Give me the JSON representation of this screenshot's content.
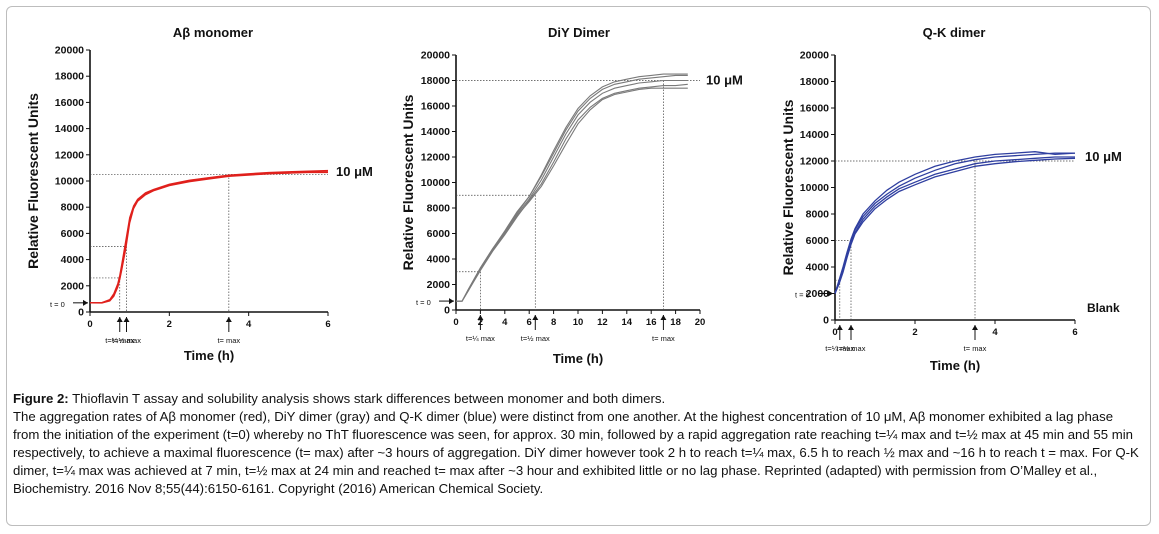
{
  "figure": {
    "caption_title": "Figure 2:",
    "caption_subtitle": "Thioflavin T assay and solubility analysis shows stark differences between monomer and both dimers.",
    "caption_body": "The aggregation rates of Aβ monomer (red), DiY dimer (gray) and Q-K dimer (blue) were distinct from one another. At the highest concentration of 10 μM, Aβ monomer exhibited a lag phase from the initiation of the experiment (t=0) whereby no ThT fluorescence was seen, for approx. 30 min, followed by a rapid aggregation rate reaching t=¼ max and t=½ max at 45 min and 55 min respectively, to achieve a maximal fluorescence (t= max) after ~3 hours of aggregation. DiY dimer however took 2 h to reach t=¼ max, 6.5 h to reach ½ max and ~16 h to reach t = max. For Q-K dimer, t=¼ max was achieved at 7 min, t=½ max at 24 min and reached t= max after ~3 hour and exhibited little or no lag phase. Reprinted (adapted) with permission from O’Malley et al., Biochemistry. 2016 Nov 8;55(44):6150-6161. Copyright (2016) American Chemical Society."
  },
  "chart_data": [
    {
      "type": "line",
      "title": "Aβ monomer",
      "xlabel": "Time (h)",
      "ylabel": "Relative Fluorescent Units",
      "xlim": [
        0,
        6
      ],
      "ylim": [
        0,
        20000
      ],
      "xticks": [
        "0",
        "2",
        "4",
        "6"
      ],
      "yticks": [
        "0",
        "2000",
        "4000",
        "6000",
        "8000",
        "10000",
        "12000",
        "14000",
        "16000",
        "18000",
        "20000"
      ],
      "color": "#e0201c",
      "concentration_label": "10 μM",
      "t0_label": "t = 0",
      "extra_label": "",
      "reference_lines": {
        "quarter": 2600,
        "half": 5000,
        "max": 10500
      },
      "markers": [
        {
          "x": 0.75,
          "label": "t=¼ max"
        },
        {
          "x": 0.92,
          "label": "t=½ max"
        },
        {
          "x": 3.5,
          "label": "t= max"
        }
      ],
      "series": [
        {
          "x": [
            0,
            0.3,
            0.5,
            0.6,
            0.7,
            0.75,
            0.8,
            0.85,
            0.9,
            0.95,
            1.0,
            1.1,
            1.2,
            1.4,
            1.6,
            1.8,
            2.0,
            2.5,
            3.0,
            3.5,
            4.0,
            4.5,
            5.0,
            5.5,
            6.0
          ],
          "y": [
            700,
            700,
            900,
            1300,
            2000,
            2600,
            3300,
            4200,
            5000,
            6000,
            7000,
            8000,
            8500,
            9000,
            9300,
            9500,
            9700,
            10000,
            10200,
            10400,
            10500,
            10600,
            10600,
            10700,
            10700
          ]
        },
        {
          "x": [
            0,
            0.3,
            0.5,
            0.6,
            0.7,
            0.75,
            0.8,
            0.85,
            0.9,
            0.95,
            1.0,
            1.1,
            1.2,
            1.4,
            1.6,
            1.8,
            2.0,
            2.5,
            3.0,
            3.5,
            4.0,
            4.5,
            5.0,
            5.5,
            6.0
          ],
          "y": [
            700,
            720,
            950,
            1400,
            2150,
            2800,
            3600,
            4500,
            5400,
            6300,
            7200,
            8100,
            8600,
            9100,
            9350,
            9550,
            9750,
            10050,
            10250,
            10450,
            10550,
            10650,
            10700,
            10750,
            10800
          ]
        },
        {
          "x": [
            0,
            0.3,
            0.5,
            0.6,
            0.7,
            0.75,
            0.8,
            0.85,
            0.9,
            0.95,
            1.0,
            1.1,
            1.2,
            1.4,
            1.6,
            1.8,
            2.0,
            2.5,
            3.0,
            3.5,
            4.0,
            4.5,
            5.0,
            5.5,
            6.0
          ],
          "y": [
            700,
            690,
            850,
            1200,
            1900,
            2500,
            3200,
            4000,
            4800,
            5800,
            6800,
            7900,
            8450,
            8950,
            9250,
            9450,
            9650,
            9950,
            10150,
            10350,
            10450,
            10550,
            10600,
            10650,
            10650
          ]
        }
      ]
    },
    {
      "type": "line",
      "title": "DiY Dimer",
      "xlabel": "Time (h)",
      "ylabel": "Relative Fluorescent Units",
      "xlim": [
        0,
        20
      ],
      "ylim": [
        0,
        20000
      ],
      "xticks": [
        "0",
        "2",
        "4",
        "6",
        "8",
        "10",
        "12",
        "14",
        "16",
        "18",
        "20"
      ],
      "yticks": [
        "0",
        "2000",
        "4000",
        "6000",
        "8000",
        "10000",
        "12000",
        "14000",
        "16000",
        "18000",
        "20000"
      ],
      "color": "#7a7a7a",
      "concentration_label": "10 μM",
      "t0_label": "t = 0",
      "extra_label": "",
      "reference_lines": {
        "quarter": 3000,
        "half": 9000,
        "max": 18000
      },
      "markers": [
        {
          "x": 2.0,
          "label": "t=¼ max"
        },
        {
          "x": 6.5,
          "label": "t=½ max"
        },
        {
          "x": 17.0,
          "label": "t= max"
        }
      ],
      "series": [
        {
          "x": [
            0,
            0.5,
            1,
            2,
            3,
            4,
            5,
            6,
            7,
            8,
            9,
            10,
            11,
            12,
            13,
            14,
            15,
            16,
            17,
            18,
            19
          ],
          "y": [
            700,
            700,
            1500,
            3200,
            4700,
            6000,
            7500,
            8700,
            10200,
            12000,
            13800,
            15300,
            16300,
            17000,
            17400,
            17600,
            17800,
            17900,
            18000,
            18000,
            18000
          ]
        },
        {
          "x": [
            0,
            0.5,
            1,
            2,
            3,
            4,
            5,
            6,
            7,
            8,
            9,
            10,
            11,
            12,
            13,
            14,
            15,
            16,
            17,
            18,
            19
          ],
          "y": [
            700,
            700,
            1600,
            3300,
            4800,
            6200,
            7700,
            8900,
            10500,
            12300,
            14100,
            15600,
            16600,
            17300,
            17700,
            17900,
            18100,
            18200,
            18300,
            18400,
            18400
          ]
        },
        {
          "x": [
            0,
            0.5,
            1,
            2,
            3,
            4,
            5,
            6,
            7,
            8,
            9,
            10,
            11,
            12,
            13,
            14,
            15,
            16,
            17,
            18,
            19
          ],
          "y": [
            700,
            700,
            1500,
            3100,
            4600,
            5900,
            7300,
            8600,
            9900,
            11600,
            13400,
            14900,
            15900,
            16600,
            17000,
            17200,
            17400,
            17500,
            17600,
            17600,
            17700
          ]
        },
        {
          "x": [
            0,
            0.5,
            1,
            2,
            3,
            4,
            5,
            6,
            7,
            8,
            9,
            10,
            11,
            12,
            13,
            14,
            15,
            16,
            17,
            18,
            19
          ],
          "y": [
            700,
            700,
            1600,
            3300,
            4800,
            6100,
            7600,
            8900,
            10600,
            12500,
            14300,
            15800,
            16800,
            17500,
            17900,
            18100,
            18300,
            18400,
            18500,
            18500,
            18500
          ]
        },
        {
          "x": [
            0,
            0.5,
            1,
            2,
            3,
            4,
            5,
            6,
            7,
            8,
            9,
            10,
            11,
            12,
            13,
            14,
            15,
            16,
            17,
            18,
            19
          ],
          "y": [
            700,
            700,
            1500,
            3200,
            4700,
            6000,
            7400,
            8500,
            9700,
            11300,
            13000,
            14600,
            15700,
            16500,
            16900,
            17100,
            17300,
            17400,
            17400,
            17400,
            17400
          ]
        }
      ]
    },
    {
      "type": "line",
      "title": "Q-K dimer",
      "xlabel": "Time (h)",
      "ylabel": "Relative Fluorescent Units",
      "xlim": [
        0,
        6
      ],
      "ylim": [
        0,
        20000
      ],
      "xticks": [
        "0",
        "2",
        "4",
        "6"
      ],
      "yticks": [
        "0",
        "2000",
        "4000",
        "6000",
        "8000",
        "10000",
        "12000",
        "14000",
        "16000",
        "18000",
        "20000"
      ],
      "color": "#2f3fa0",
      "concentration_label": "10 μM",
      "t0_label": "t = 0",
      "extra_label": "Blank",
      "reference_lines": {
        "quarter": 3000,
        "half": 6000,
        "max": 12000
      },
      "markers": [
        {
          "x": 0.12,
          "label": "t=¼ max"
        },
        {
          "x": 0.4,
          "label": "t=½ max"
        },
        {
          "x": 3.5,
          "label": "t= max"
        }
      ],
      "series": [
        {
          "x": [
            0,
            0.1,
            0.2,
            0.3,
            0.4,
            0.5,
            0.7,
            1.0,
            1.3,
            1.6,
            2.0,
            2.5,
            3.0,
            3.5,
            4.0,
            4.5,
            5.0,
            5.5,
            6.0
          ],
          "y": [
            2000,
            2800,
            3700,
            4800,
            5800,
            6600,
            7600,
            8600,
            9300,
            9900,
            10400,
            11000,
            11400,
            11800,
            12000,
            12100,
            12200,
            12300,
            12300
          ]
        },
        {
          "x": [
            0,
            0.1,
            0.2,
            0.3,
            0.4,
            0.5,
            0.7,
            1.0,
            1.3,
            1.6,
            2.0,
            2.5,
            3.0,
            3.5,
            4.0,
            4.5,
            5.0,
            5.5,
            6.0
          ],
          "y": [
            2000,
            2900,
            3900,
            5000,
            6000,
            6800,
            7800,
            8800,
            9500,
            10100,
            10700,
            11300,
            11800,
            12100,
            12300,
            12400,
            12500,
            12600,
            12600
          ]
        },
        {
          "x": [
            0,
            0.1,
            0.2,
            0.3,
            0.4,
            0.5,
            0.7,
            1.0,
            1.3,
            1.6,
            2.0,
            2.5,
            3.0,
            3.5,
            4.0,
            4.5,
            5.0,
            5.5,
            6.0
          ],
          "y": [
            2000,
            2700,
            3600,
            4700,
            5700,
            6500,
            7400,
            8400,
            9100,
            9700,
            10200,
            10800,
            11200,
            11600,
            11800,
            11950,
            12050,
            12150,
            12200
          ]
        },
        {
          "x": [
            0,
            0.1,
            0.2,
            0.3,
            0.4,
            0.5,
            0.7,
            1.0,
            1.3,
            1.6,
            2.0,
            2.5,
            3.0,
            3.5,
            4.0,
            4.5,
            5.0,
            5.5,
            6.0
          ],
          "y": [
            2000,
            3000,
            4000,
            5100,
            6100,
            6900,
            8000,
            9000,
            9800,
            10400,
            11000,
            11600,
            12000,
            12300,
            12500,
            12600,
            12700,
            12500,
            12600
          ]
        }
      ]
    }
  ]
}
